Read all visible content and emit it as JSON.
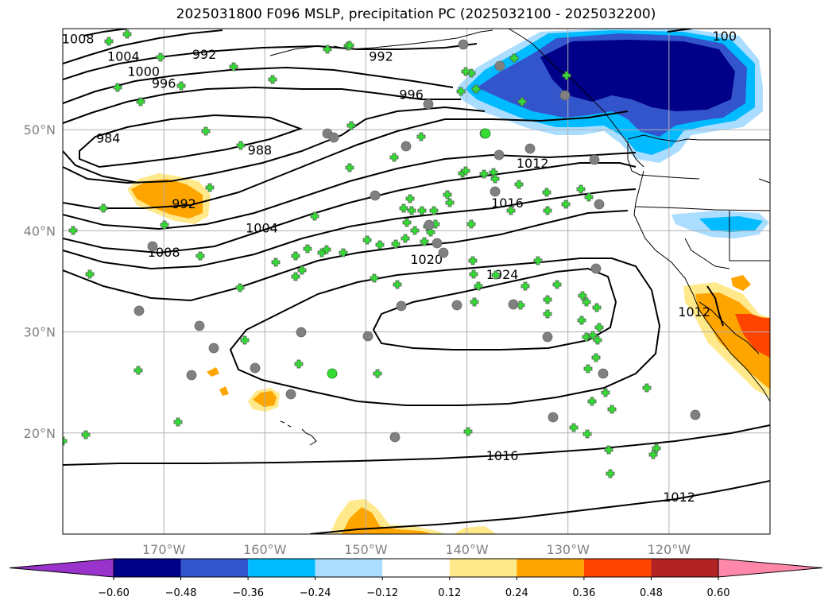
{
  "title": "2025031800 F096 MSLP, precipitation PC (2025032100 - 2025032200)",
  "map": {
    "projection": "PlateCarree",
    "lon_range": [
      -180,
      -110
    ],
    "lat_range": [
      10,
      60
    ],
    "lon_ticks": [
      {
        "lon": -170,
        "label": "170°W"
      },
      {
        "lon": -160,
        "label": "160°W"
      },
      {
        "lon": -150,
        "label": "150°W"
      },
      {
        "lon": -140,
        "label": "140°W"
      },
      {
        "lon": -130,
        "label": "130°W"
      },
      {
        "lon": -120,
        "label": "120°W"
      }
    ],
    "lat_ticks": [
      {
        "lat": 50,
        "label": "50°N"
      },
      {
        "lat": 40,
        "label": "40°N"
      },
      {
        "lat": 30,
        "label": "30°N"
      },
      {
        "lat": 20,
        "label": "20°N"
      }
    ],
    "grid": true,
    "contour_color": "#000000",
    "grid_color": "#b0b0b0",
    "station_cross_color": "#33dd33",
    "station_circle_color": "#808080",
    "isobar_labels": [
      {
        "text": "1008",
        "lon": -178.5,
        "lat": 59.0
      },
      {
        "text": "1004",
        "lon": -174,
        "lat": 57.3
      },
      {
        "text": "1000",
        "lon": -172,
        "lat": 55.8
      },
      {
        "text": "996",
        "lon": -170,
        "lat": 54.6
      },
      {
        "text": "984",
        "lon": -175.5,
        "lat": 49.2
      },
      {
        "text": "992",
        "lon": -166,
        "lat": 57.5
      },
      {
        "text": "992",
        "lon": -148.5,
        "lat": 57.3
      },
      {
        "text": "996",
        "lon": -145.5,
        "lat": 53.5
      },
      {
        "text": "988",
        "lon": -160.5,
        "lat": 48.0
      },
      {
        "text": "992",
        "lon": -168,
        "lat": 42.7
      },
      {
        "text": "1004",
        "lon": -160.3,
        "lat": 40.3
      },
      {
        "text": "1008",
        "lon": -170,
        "lat": 37.9
      },
      {
        "text": "1012",
        "lon": -133.5,
        "lat": 46.7
      },
      {
        "text": "1016",
        "lon": -136,
        "lat": 42.8
      },
      {
        "text": "1020",
        "lon": -144,
        "lat": 37.2
      },
      {
        "text": "1024",
        "lon": -136.5,
        "lat": 35.7
      },
      {
        "text": "1016",
        "lon": -136.5,
        "lat": 17.8
      },
      {
        "text": "1012",
        "lon": -119,
        "lat": 13.7
      },
      {
        "text": "1012",
        "lon": -117.5,
        "lat": 32.0
      },
      {
        "text": "100",
        "lon": -114.5,
        "lat": 59.3
      }
    ]
  },
  "colorbar": {
    "ticks": [
      -0.6,
      -0.48,
      -0.36,
      -0.24,
      -0.12,
      0.12,
      0.24,
      0.36,
      0.48,
      0.6
    ],
    "tick_labels": [
      "−0.60",
      "−0.48",
      "−0.36",
      "−0.24",
      "−0.12",
      "0.12",
      "0.24",
      "0.36",
      "0.48",
      "0.60"
    ],
    "under_color": "#9933cc",
    "over_color": "#ff88aa",
    "bins": [
      {
        "from": -0.6,
        "to": -0.48,
        "color": "#000088"
      },
      {
        "from": -0.48,
        "to": -0.36,
        "color": "#3355cc"
      },
      {
        "from": -0.36,
        "to": -0.24,
        "color": "#00bbff"
      },
      {
        "from": -0.24,
        "to": -0.12,
        "color": "#aaddff"
      },
      {
        "from": -0.12,
        "to": 0.12,
        "color": "#ffffff"
      },
      {
        "from": 0.12,
        "to": 0.24,
        "color": "#ffe98a"
      },
      {
        "from": 0.24,
        "to": 0.36,
        "color": "#ffa500"
      },
      {
        "from": 0.36,
        "to": 0.48,
        "color": "#ff4400"
      },
      {
        "from": 0.48,
        "to": 0.6,
        "color": "#b22222"
      }
    ]
  }
}
